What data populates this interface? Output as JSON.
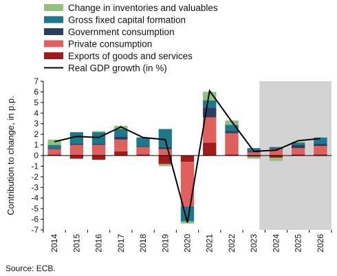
{
  "chart_data": {
    "type": "bar",
    "stacked": true,
    "categories": [
      "2014",
      "2015",
      "2016",
      "2017",
      "2018",
      "2019",
      "2020",
      "2021",
      "2022",
      "2023",
      "2024",
      "2025",
      "2026"
    ],
    "ylabel": "Contribution to change, in p.p.",
    "ylim": [
      -7,
      7
    ],
    "yticks": [
      -7,
      -6,
      -5,
      -4,
      -3,
      -2,
      -1,
      0,
      1,
      2,
      3,
      4,
      5,
      6,
      7
    ],
    "grid": false,
    "projection_shading": {
      "from": "2024",
      "to": "2026",
      "color": "#d3d3d3"
    },
    "series": [
      {
        "name": "Exports of goods and services",
        "color": "#a31a1a",
        "values": [
          0.1,
          -0.3,
          -0.4,
          0.4,
          0.1,
          -0.8,
          -0.6,
          1.2,
          0.1,
          -0.1,
          -0.2,
          0.1,
          0.1
        ]
      },
      {
        "name": "Private consumption",
        "color": "#e0605e",
        "values": [
          0.5,
          1.0,
          1.0,
          1.1,
          0.7,
          0.6,
          -4.2,
          2.4,
          2.0,
          0.3,
          0.6,
          0.6,
          0.8
        ]
      },
      {
        "name": "Government consumption",
        "color": "#2c3e60",
        "values": [
          0.1,
          0.1,
          0.1,
          0.3,
          0.1,
          0.2,
          0.0,
          0.9,
          0.2,
          0.1,
          0.1,
          0.3,
          0.2
        ]
      },
      {
        "name": "Gross fixed capital formation",
        "color": "#1a7a8c",
        "values": [
          0.3,
          1.1,
          1.1,
          0.7,
          0.8,
          1.7,
          -1.4,
          0.7,
          0.6,
          0.3,
          0.1,
          0.2,
          0.6
        ]
      },
      {
        "name": "Change in inventories and valuables",
        "color": "#8fc27a",
        "values": [
          0.5,
          0.0,
          0.1,
          0.3,
          0.0,
          -0.2,
          -0.2,
          0.8,
          0.4,
          -0.2,
          -0.3,
          0.1,
          0.0
        ]
      }
    ],
    "line": {
      "name": "Real GDP growth (in %)",
      "color": "#000000",
      "values": [
        1.3,
        1.8,
        1.7,
        2.7,
        1.7,
        1.5,
        -6.3,
        6.1,
        3.2,
        0.4,
        0.5,
        1.4,
        1.6
      ]
    },
    "legend_order": [
      "Change in inventories and valuables",
      "Gross fixed capital formation",
      "Government consumption",
      "Private consumption",
      "Exports of goods and services",
      "Real GDP growth (in %)"
    ],
    "legend_position": "top-left"
  },
  "source": "Source: ECB."
}
